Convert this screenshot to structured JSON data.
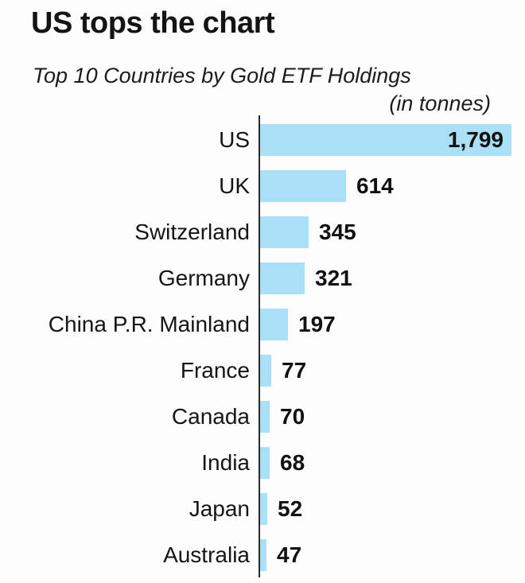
{
  "header": {
    "title": "US tops the chart",
    "subtitle": "Top 10 Countries by Gold ETF Holdings",
    "unit_note": "(in tonnes)"
  },
  "colors": {
    "bar": "#a9dff7",
    "axis": "#2a2a2a",
    "text": "#161616",
    "background": "#fdfdfd"
  },
  "chart_data": {
    "type": "bar",
    "orientation": "horizontal",
    "title": "US tops the chart",
    "subtitle": "Top 10 Countries by Gold ETF Holdings",
    "unit": "tonnes",
    "categories": [
      "US",
      "UK",
      "Switzerland",
      "Germany",
      "China P.R. Mainland",
      "France",
      "Canada",
      "India",
      "Japan",
      "Australia"
    ],
    "values": [
      1799,
      614,
      345,
      321,
      197,
      77,
      70,
      68,
      52,
      47
    ],
    "value_labels": [
      "1,799",
      "614",
      "345",
      "321",
      "197",
      "77",
      "70",
      "68",
      "52",
      "47"
    ],
    "xlim": [
      0,
      1799
    ],
    "grid": false,
    "legend": false,
    "value_label_placement": "outside bar end, inside for the longest bar",
    "sort": "descending"
  }
}
